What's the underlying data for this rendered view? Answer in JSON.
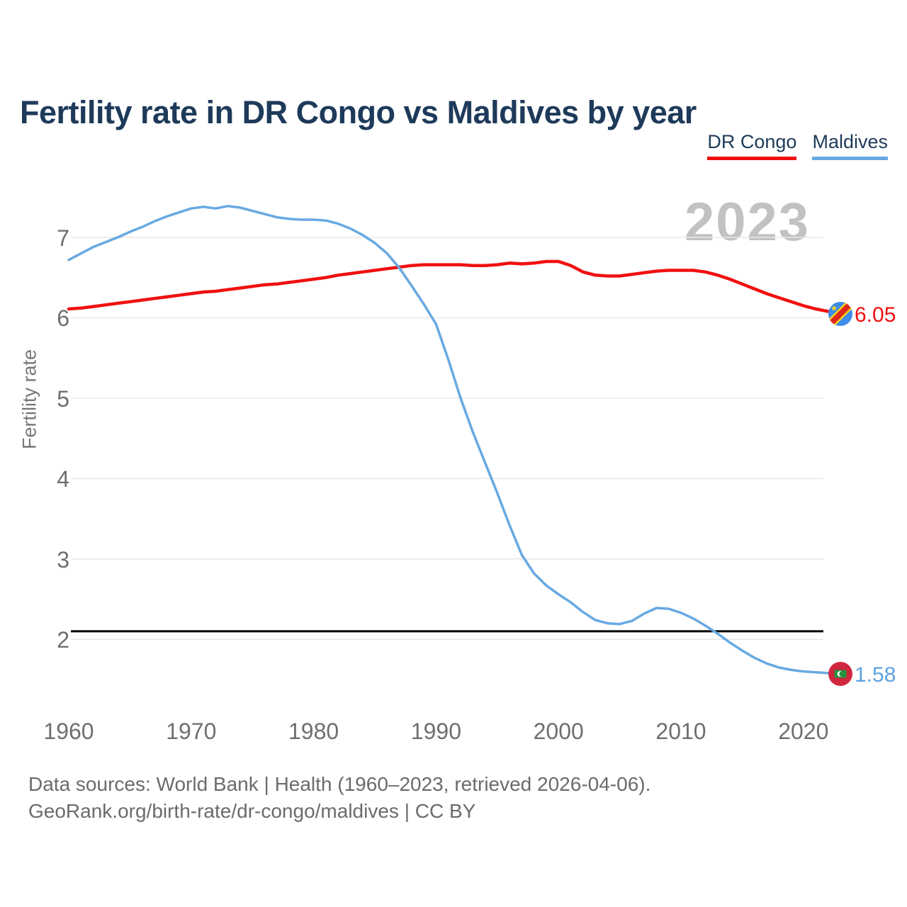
{
  "header": {
    "title": "Fertility rate in DR Congo vs Maldives by year",
    "legend": [
      {
        "id": "dr-congo",
        "label": "DR Congo",
        "color": "#f01010"
      },
      {
        "id": "maldives",
        "label": "Maldives",
        "color": "#68a9e2"
      }
    ]
  },
  "watermark": "2023",
  "chart_data": {
    "type": "line",
    "title": "Fertility rate in DR Congo vs Maldives by year",
    "xlabel": "",
    "ylabel": "Fertility rate",
    "grid": true,
    "legend_position": "top-right",
    "xlim": [
      1959,
      2028
    ],
    "ylim": [
      1.3,
      7.7
    ],
    "xticks": [
      1960,
      1970,
      1980,
      1990,
      2000,
      2010,
      2020
    ],
    "yticks": [
      7,
      6,
      5,
      4,
      3,
      2
    ],
    "replacement_line": {
      "value": 2.1,
      "color": "#000000"
    },
    "x": [
      1960,
      1961,
      1962,
      1963,
      1964,
      1965,
      1966,
      1967,
      1968,
      1969,
      1970,
      1971,
      1972,
      1973,
      1974,
      1975,
      1976,
      1977,
      1978,
      1979,
      1980,
      1981,
      1982,
      1983,
      1984,
      1985,
      1986,
      1987,
      1988,
      1989,
      1990,
      1991,
      1992,
      1993,
      1994,
      1995,
      1996,
      1997,
      1998,
      1999,
      2000,
      2001,
      2002,
      2003,
      2004,
      2005,
      2006,
      2007,
      2008,
      2009,
      2010,
      2011,
      2012,
      2013,
      2014,
      2015,
      2016,
      2017,
      2018,
      2019,
      2020,
      2021,
      2022,
      2023
    ],
    "series": [
      {
        "name": "DR Congo",
        "color": "#f01010",
        "width": 4.5,
        "values": [
          6.11,
          6.12,
          6.14,
          6.16,
          6.18,
          6.2,
          6.22,
          6.24,
          6.26,
          6.28,
          6.3,
          6.32,
          6.33,
          6.35,
          6.37,
          6.39,
          6.41,
          6.42,
          6.44,
          6.46,
          6.48,
          6.5,
          6.53,
          6.55,
          6.57,
          6.59,
          6.61,
          6.63,
          6.65,
          6.66,
          6.66,
          6.66,
          6.66,
          6.65,
          6.65,
          6.66,
          6.68,
          6.67,
          6.68,
          6.7,
          6.7,
          6.65,
          6.57,
          6.53,
          6.52,
          6.52,
          6.54,
          6.56,
          6.58,
          6.59,
          6.59,
          6.59,
          6.57,
          6.53,
          6.48,
          6.42,
          6.36,
          6.3,
          6.25,
          6.2,
          6.15,
          6.11,
          6.08,
          6.05
        ]
      },
      {
        "name": "Maldives",
        "color": "#68a9e2",
        "width": 3.5,
        "values": [
          6.72,
          6.8,
          6.88,
          6.94,
          7.0,
          7.07,
          7.13,
          7.2,
          7.26,
          7.31,
          7.36,
          7.38,
          7.36,
          7.39,
          7.37,
          7.33,
          7.29,
          7.25,
          7.23,
          7.22,
          7.22,
          7.21,
          7.17,
          7.11,
          7.03,
          6.93,
          6.8,
          6.62,
          6.4,
          6.17,
          5.92,
          5.48,
          5.0,
          4.58,
          4.2,
          3.82,
          3.42,
          3.05,
          2.82,
          2.67,
          2.56,
          2.46,
          2.34,
          2.24,
          2.2,
          2.19,
          2.23,
          2.32,
          2.39,
          2.38,
          2.33,
          2.26,
          2.17,
          2.07,
          1.96,
          1.86,
          1.77,
          1.7,
          1.65,
          1.62,
          1.6,
          1.59,
          1.58,
          1.58
        ]
      }
    ],
    "end_labels": [
      {
        "series": "DR Congo",
        "value": "6.05",
        "color": "#f01010",
        "flag": "dr-congo-flag"
      },
      {
        "series": "Maldives",
        "value": "1.58",
        "color": "#5ea3e0",
        "flag": "maldives-flag"
      }
    ],
    "current_year": "2023"
  },
  "footer": {
    "line1": "Data sources: World Bank | Health (1960–2023, retrieved 2026-04-06).",
    "line2": "GeoRank.org/birth-rate/dr-congo/maldives | CC BY"
  },
  "colors": {
    "title_text": "#1e3a5a",
    "axis_text": "#6f6f6f",
    "watermark": "#c2c2c2",
    "gridline": "#e7e7e7",
    "footer_text": "#6b6b6b"
  }
}
